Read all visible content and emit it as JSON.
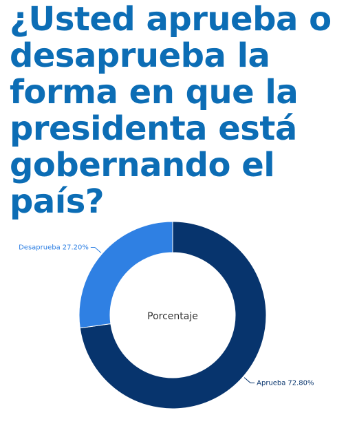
{
  "chart_data": {
    "type": "donut",
    "title": "¿Usted aprueba o desaprueba la forma en que la presidenta está gobernando el país?",
    "center_label": "Porcentaje",
    "categories": [
      "Aprueba",
      "Desaprueba"
    ],
    "values": [
      72.8,
      27.2
    ],
    "value_labels": [
      "72.80%",
      "27.20%"
    ],
    "colors": [
      "#07346d",
      "#2f80e3"
    ]
  }
}
